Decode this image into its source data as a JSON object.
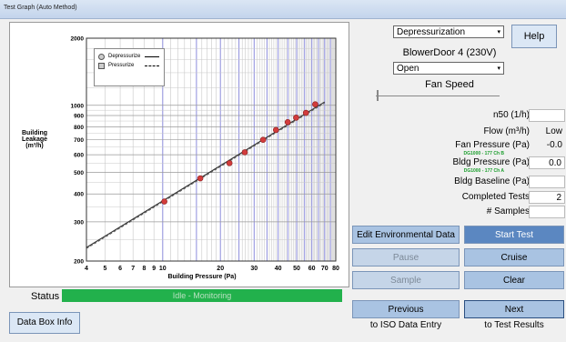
{
  "window": {
    "title": "Test Graph (Auto Method)"
  },
  "chart_data": {
    "type": "scatter",
    "xlabel": "Building Pressure (Pa)",
    "ylabel": "Building\nLeakage\n(m³/h)",
    "x_scale": "log",
    "y_scale": "log",
    "xlim": [
      4,
      80
    ],
    "ylim": [
      200,
      2000
    ],
    "x_ticks": [
      4,
      5,
      6,
      7,
      8,
      9,
      10,
      20,
      30,
      40,
      50,
      60,
      70,
      80
    ],
    "x_tick_labels": [
      "4",
      "5",
      "6",
      "7",
      "8",
      "9",
      "10",
      "20",
      "30",
      "40",
      "50",
      "60",
      "70",
      "80"
    ],
    "y_ticks": [
      200,
      300,
      400,
      500,
      600,
      700,
      800,
      900,
      1000,
      2000
    ],
    "y_tick_labels": [
      "200",
      "300",
      "400",
      "500",
      "600",
      "700",
      "800",
      "900",
      "1000",
      "2000"
    ],
    "grid": true,
    "legend_placement": "top-left",
    "series": [
      {
        "name": "Depressurize",
        "marker": "circle",
        "line": "solid",
        "x": [
          10.2,
          15.7,
          22.3,
          26.8,
          33.4,
          39.0,
          44.9,
          49.7,
          55.9,
          62.5
        ],
        "y": [
          370,
          470,
          550,
          615,
          700,
          775,
          840,
          880,
          925,
          1010
        ]
      },
      {
        "name": "Pressurize",
        "marker": "square",
        "line": "dashed",
        "x": [],
        "y": []
      }
    ],
    "fit_line": {
      "x": [
        4,
        70
      ],
      "y": [
        230,
        1035
      ]
    },
    "colors": {
      "marker": "#d23c3c",
      "grid_major": "#8c8cdc",
      "grid_minor": "#c8c8c8"
    }
  },
  "status": {
    "label": "Status",
    "text": "Idle - Monitoring"
  },
  "data_box_button": "Data Box Info",
  "controls": {
    "mode_select": "Depressurization",
    "help_button": "Help",
    "device_name": "BlowerDoor 4 (230V)",
    "fan_select": "Open",
    "fan_speed_label": "Fan Speed",
    "slider_level": 0
  },
  "measurements": [
    {
      "label": "n50 (1/h)",
      "value": "",
      "box": true
    },
    {
      "label": "Flow (m³/h)",
      "value": "Low",
      "box": false
    },
    {
      "label": "Fan Pressure (Pa)",
      "value": "-0.0",
      "box": false,
      "sub": "DG1000 - 177 Ch B"
    },
    {
      "label": "Bldg Pressure (Pa)",
      "value": "0.0",
      "box": true,
      "sub": "DG1000 - 177 Ch A"
    },
    {
      "label": "Bldg Baseline (Pa)",
      "value": "",
      "box": true
    },
    {
      "label": "Completed Tests",
      "value": "2",
      "box": true
    },
    {
      "label": "# Samples",
      "value": "",
      "box": true
    }
  ],
  "buttons": {
    "edit_env": "Edit Environmental Data",
    "start_test": "Start Test",
    "pause": "Pause",
    "cruise": "Cruise",
    "sample": "Sample",
    "clear": "Clear",
    "previous": "Previous",
    "next": "Next"
  },
  "captions": {
    "previous": "to ISO Data Entry",
    "next": "to Test Results"
  }
}
